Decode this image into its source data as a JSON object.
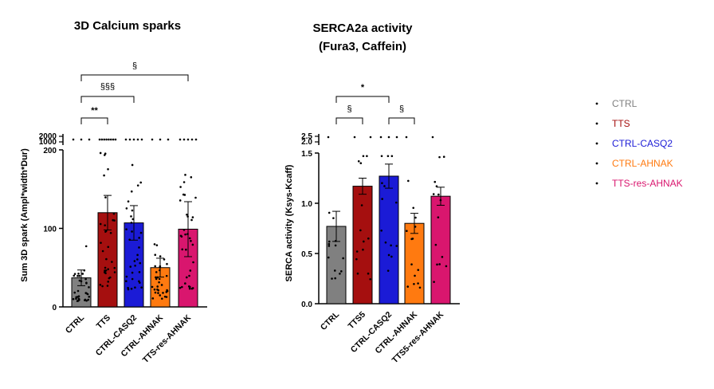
{
  "colors": {
    "CTRL": "#808080",
    "TTS": "#a50f0f",
    "CTRL-CASQ2": "#1b1bd6",
    "CTRL-AHNAK": "#ff7a10",
    "TTS-res-AHNAK": "#d9166e"
  },
  "legend": {
    "items": [
      {
        "label": "CTRL",
        "color": "#808080"
      },
      {
        "label": "TTS",
        "color": "#a50f0f"
      },
      {
        "label": "CTRL-CASQ2",
        "color": "#1b1bd6"
      },
      {
        "label": "CTRL-AHNAK",
        "color": "#ff7a10"
      },
      {
        "label": "TTS-res-AHNAK",
        "color": "#d9166e"
      }
    ]
  },
  "chart_data": [
    {
      "type": "bar",
      "title": "3D Calcium sparks",
      "ylabel": "Sum 3D spark (Ampl*width*Dur)",
      "categories": [
        "CTRL",
        "TTS",
        "CTRL-CASQ2",
        "CTRL-AHNAK",
        "TTS-res-AHNAK"
      ],
      "values": [
        37,
        120,
        107,
        50,
        99
      ],
      "errors": [
        10,
        22,
        22,
        12,
        35
      ],
      "ylim": [
        0,
        200
      ],
      "yticks": [
        "0",
        "100",
        "200"
      ],
      "broken_axis_ticks": [
        "1000",
        "2000"
      ],
      "significance": [
        {
          "label": "**",
          "from": 0,
          "to": 1
        },
        {
          "label": "§§§",
          "from": 0,
          "to": 2
        },
        {
          "label": "§",
          "from": 0,
          "to": 4
        }
      ]
    },
    {
      "type": "bar",
      "title": "SERCA2a activity",
      "subtitle": "(Fura3, Caffein)",
      "ylabel": "SERCA activity (Ksys-Kcaff)",
      "categories": [
        "CTRL",
        "TTS5",
        "CTRL-CASQ2",
        "CTRL-AHNAK",
        "TTS5-res-AHNAK"
      ],
      "values": [
        0.77,
        1.17,
        1.27,
        0.8,
        1.07
      ],
      "errors": [
        0.15,
        0.08,
        0.12,
        0.1,
        0.09
      ],
      "ylim": [
        0,
        1.5
      ],
      "yticks": [
        "0.0",
        "0.5",
        "1.0",
        "1.5"
      ],
      "broken_axis_ticks": [
        "2.0",
        "2.5"
      ],
      "significance": [
        {
          "label": "§",
          "from": 0,
          "to": 1
        },
        {
          "label": "§",
          "from": 2,
          "to": 3
        },
        {
          "label": "*",
          "from": 0,
          "to": 2
        }
      ]
    }
  ]
}
